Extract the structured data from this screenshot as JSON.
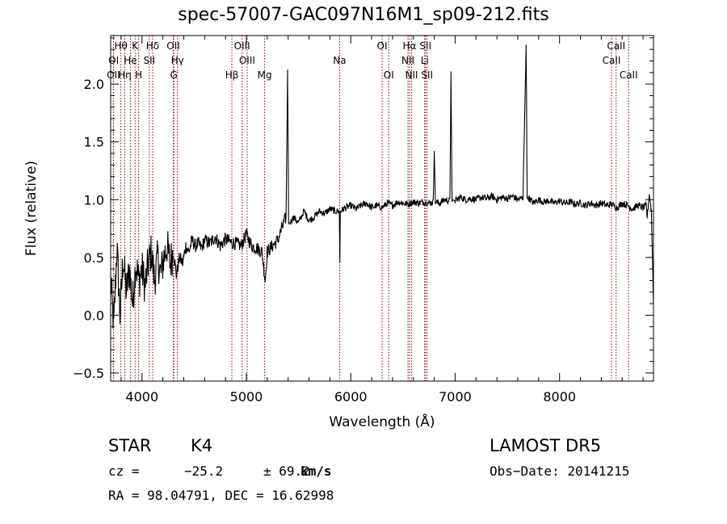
{
  "chart_data": {
    "type": "line",
    "title": "spec-57007-GAC097N16M1_sp09-212.fits",
    "xlabel": "Wavelength (Å)",
    "ylabel": "Flux (relative)",
    "xlim": [
      3700,
      8900
    ],
    "ylim": [
      -0.57,
      2.42
    ],
    "xticks": [
      4000,
      5000,
      6000,
      7000,
      8000
    ],
    "xtick_labels": [
      "4000",
      "5000",
      "6000",
      "7000",
      "8000"
    ],
    "yticks": [
      -0.5,
      0.0,
      0.5,
      1.0,
      1.5,
      2.0
    ],
    "ytick_labels": [
      "−0.5",
      "0.0",
      "0.5",
      "1.0",
      "1.5",
      "2.0"
    ],
    "line_color": "#000000",
    "marker_color": "#8b0000",
    "series": [
      {
        "x": [
          3700,
          3730,
          3760,
          3790,
          3820,
          3850,
          3880,
          3910,
          3940,
          3970,
          4000,
          4030,
          4060,
          4090,
          4120,
          4150,
          4180,
          4210,
          4240,
          4270,
          4300,
          4330,
          4360,
          4390,
          4420,
          4450,
          4480,
          4510,
          4540,
          4570,
          4600,
          4650,
          4700,
          4750,
          4800,
          4850,
          4900,
          4950,
          5000,
          5050,
          5100,
          5150,
          5180,
          5200,
          5250,
          5300,
          5340,
          5380,
          5395,
          5405,
          5420,
          5450,
          5500,
          5550,
          5600,
          5650,
          5700,
          5750,
          5800,
          5850,
          5890,
          5895,
          5900,
          5950,
          6000,
          6050,
          6100,
          6150,
          6200,
          6250,
          6300,
          6350,
          6400,
          6450,
          6500,
          6550,
          6600,
          6650,
          6700,
          6750,
          6790,
          6800,
          6810,
          6850,
          6900,
          6950,
          6960,
          6970,
          7000,
          7050,
          7100,
          7150,
          7200,
          7250,
          7300,
          7350,
          7400,
          7450,
          7500,
          7550,
          7600,
          7650,
          7680,
          7690,
          7700,
          7750,
          7800,
          7850,
          7900,
          7950,
          8000,
          8050,
          8100,
          8150,
          8200,
          8250,
          8300,
          8350,
          8400,
          8450,
          8500,
          8550,
          8600,
          8650,
          8700,
          8750,
          8800,
          8830,
          8840,
          8860,
          8880,
          8900
        ],
        "y": [
          0.3,
          -0.1,
          0.6,
          0.0,
          0.5,
          0.2,
          0.4,
          0.1,
          0.45,
          0.3,
          0.4,
          0.25,
          0.45,
          0.55,
          0.3,
          0.5,
          0.35,
          0.5,
          0.6,
          0.45,
          0.55,
          0.35,
          0.5,
          0.45,
          0.6,
          0.55,
          0.65,
          0.6,
          0.62,
          0.58,
          0.65,
          0.62,
          0.68,
          0.6,
          0.66,
          0.63,
          0.62,
          0.6,
          0.7,
          0.6,
          0.58,
          0.55,
          0.3,
          0.55,
          0.6,
          0.65,
          0.75,
          0.85,
          2.1,
          0.8,
          0.8,
          0.85,
          0.8,
          0.9,
          0.82,
          0.85,
          0.9,
          0.88,
          0.92,
          0.9,
          0.9,
          0.45,
          0.9,
          0.93,
          0.95,
          0.92,
          0.95,
          0.97,
          0.93,
          0.95,
          0.93,
          0.97,
          0.95,
          0.98,
          0.97,
          0.96,
          0.98,
          0.97,
          0.98,
          0.97,
          0.98,
          1.45,
          0.98,
          0.97,
          1.0,
          0.99,
          2.12,
          1.0,
          0.99,
          1.02,
          1.0,
          1.01,
          1.0,
          1.02,
          1.01,
          1.03,
          1.0,
          1.02,
          1.01,
          1.03,
          1.0,
          1.02,
          2.35,
          1.0,
          1.02,
          0.97,
          1.0,
          0.98,
          0.99,
          0.97,
          0.99,
          0.97,
          0.98,
          0.96,
          0.97,
          0.95,
          0.97,
          0.95,
          0.97,
          0.95,
          0.96,
          0.93,
          0.97,
          0.95,
          0.92,
          0.95,
          0.93,
          0.95,
          0.85,
          1.05,
          0.9,
          0.1
        ]
      }
    ],
    "annotations": [
      {
        "label": "Hθ",
        "x": 3798,
        "row": 0
      },
      {
        "label": "K",
        "x": 3934,
        "row": 0
      },
      {
        "label": "Hδ",
        "x": 4102,
        "row": 0
      },
      {
        "label": "OII",
        "x": 4300,
        "row": 0
      },
      {
        "label": "OIII",
        "x": 4959,
        "row": 0
      },
      {
        "label": "OI",
        "x": 6300,
        "row": 0
      },
      {
        "label": "Hα",
        "x": 6563,
        "row": 0
      },
      {
        "label": "SII",
        "x": 6716,
        "row": 0
      },
      {
        "label": "CaII",
        "x": 8542,
        "row": 0
      },
      {
        "label": "OI",
        "x": 3728,
        "row": 1
      },
      {
        "label": "He",
        "x": 3889,
        "row": 1
      },
      {
        "label": "SII",
        "x": 4070,
        "row": 1
      },
      {
        "label": "Hγ",
        "x": 4340,
        "row": 1
      },
      {
        "label": "OIII",
        "x": 5007,
        "row": 1
      },
      {
        "label": "Na",
        "x": 5893,
        "row": 1
      },
      {
        "label": "NII",
        "x": 6548,
        "row": 1
      },
      {
        "label": "Li",
        "x": 6708,
        "row": 1
      },
      {
        "label": "CaII",
        "x": 8498,
        "row": 1
      },
      {
        "label": "OII",
        "x": 3727,
        "row": 2
      },
      {
        "label": "Hη",
        "x": 3835,
        "row": 2
      },
      {
        "label": "H",
        "x": 3968,
        "row": 2
      },
      {
        "label": "G",
        "x": 4305,
        "row": 2
      },
      {
        "label": "Hβ",
        "x": 4861,
        "row": 2
      },
      {
        "label": "Mg",
        "x": 5175,
        "row": 2
      },
      {
        "label": "OI",
        "x": 6364,
        "row": 2
      },
      {
        "label": "NII",
        "x": 6583,
        "row": 2
      },
      {
        "label": "SII",
        "x": 6731,
        "row": 2
      },
      {
        "label": "CaII",
        "x": 8662,
        "row": 2
      }
    ],
    "marker_lines": [
      3727,
      3728,
      3798,
      3835,
      3889,
      3934,
      3968,
      4070,
      4102,
      4300,
      4305,
      4340,
      4861,
      4959,
      5007,
      5175,
      5893,
      6300,
      6364,
      6548,
      6563,
      6583,
      6708,
      6716,
      6731,
      8498,
      8542,
      8662
    ]
  },
  "info": {
    "object_type": "STAR",
    "object_class": "K4",
    "survey": "LAMOST DR5",
    "cz_label": "cz =",
    "cz_value": "−25.2",
    "cz_error": "± 69.2",
    "cz_unit": "km/s",
    "obs_date": "Obs−Date: 20141215",
    "radec": "RA =  98.04791, DEC =  16.62998"
  }
}
